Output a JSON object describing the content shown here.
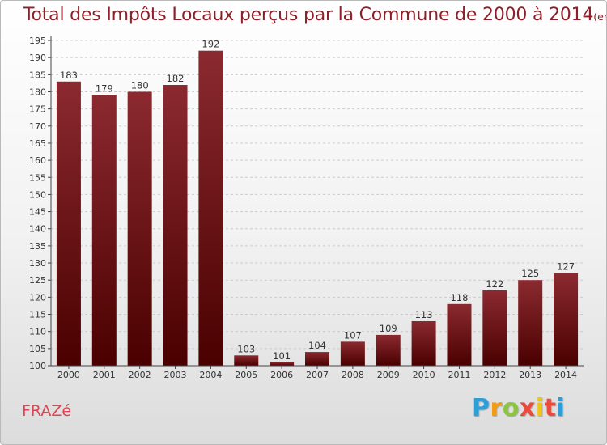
{
  "title": {
    "main": "Total des Impôts Locaux perçus par la Commune de 2000 à 2014",
    "unit": "(en milliers d'€)"
  },
  "commune": "FRAZé",
  "logo": {
    "letters": [
      "P",
      "r",
      "o",
      "x",
      "i",
      "t",
      "i"
    ],
    "colors": [
      "#2e9ed8",
      "#f39c12",
      "#8cc63f",
      "#e84c3d",
      "#f1c40f",
      "#e84c3d",
      "#2e9ed8"
    ]
  },
  "colors": {
    "bar_top": "#8b2a30",
    "bar_bottom": "#4a0000",
    "axis": "#444444",
    "grid": "#cccccc"
  },
  "chart_data": {
    "type": "bar",
    "categories": [
      "2000",
      "2001",
      "2002",
      "2003",
      "2004",
      "2005",
      "2006",
      "2007",
      "2008",
      "2009",
      "2010",
      "2011",
      "2012",
      "2013",
      "2014"
    ],
    "values": [
      183,
      179,
      180,
      182,
      192,
      103,
      101,
      104,
      107,
      109,
      113,
      118,
      122,
      125,
      127
    ],
    "ylim": [
      100,
      195
    ],
    "yticks": [
      100,
      105,
      110,
      115,
      120,
      125,
      130,
      135,
      140,
      145,
      150,
      155,
      160,
      165,
      170,
      175,
      180,
      185,
      190,
      195
    ],
    "ytick_labels": [
      "100",
      "105",
      "110",
      "115",
      "120",
      "125",
      "130",
      "135",
      "140",
      "145",
      "150",
      "155",
      "160",
      "165",
      "170",
      "175",
      "180",
      "185",
      "190",
      "195"
    ],
    "grid": "y-dashed",
    "legend": "none"
  }
}
